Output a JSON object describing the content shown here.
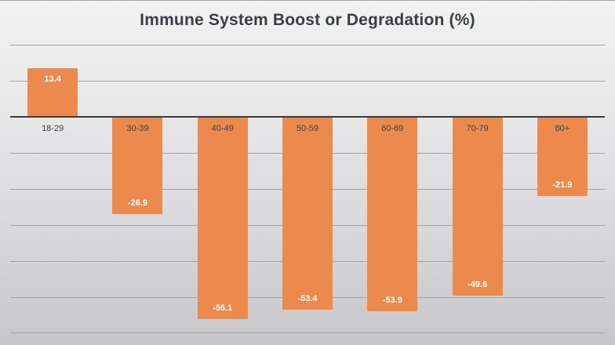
{
  "chart_data": {
    "type": "bar",
    "title": "Immune System Boost or Degradation (%)",
    "categories": [
      "18-29",
      "30-39",
      "40-49",
      "50-59",
      "60-69",
      "70-79",
      "80+"
    ],
    "values": [
      13.4,
      -26.9,
      -56.1,
      -53.4,
      -53.9,
      -49.6,
      -21.9
    ],
    "data_labels": [
      "13.4",
      "-26.9",
      "-56.1",
      "-53.4",
      "-53.9",
      "-49.6",
      "-21.9"
    ],
    "xlabel": "",
    "ylabel": "",
    "ylim": [
      -60,
      20
    ],
    "gridline_step": 10,
    "grid": true,
    "legend_position": "none",
    "data_label_position": "inside-end",
    "colors": {
      "bar": "#ec8a4e",
      "data_label": "#ffffff",
      "category_label": "#3f3f3f",
      "axis_line": "#3c3c3c",
      "gridline": "#a4a4a6",
      "title": "#3a3e44"
    }
  }
}
